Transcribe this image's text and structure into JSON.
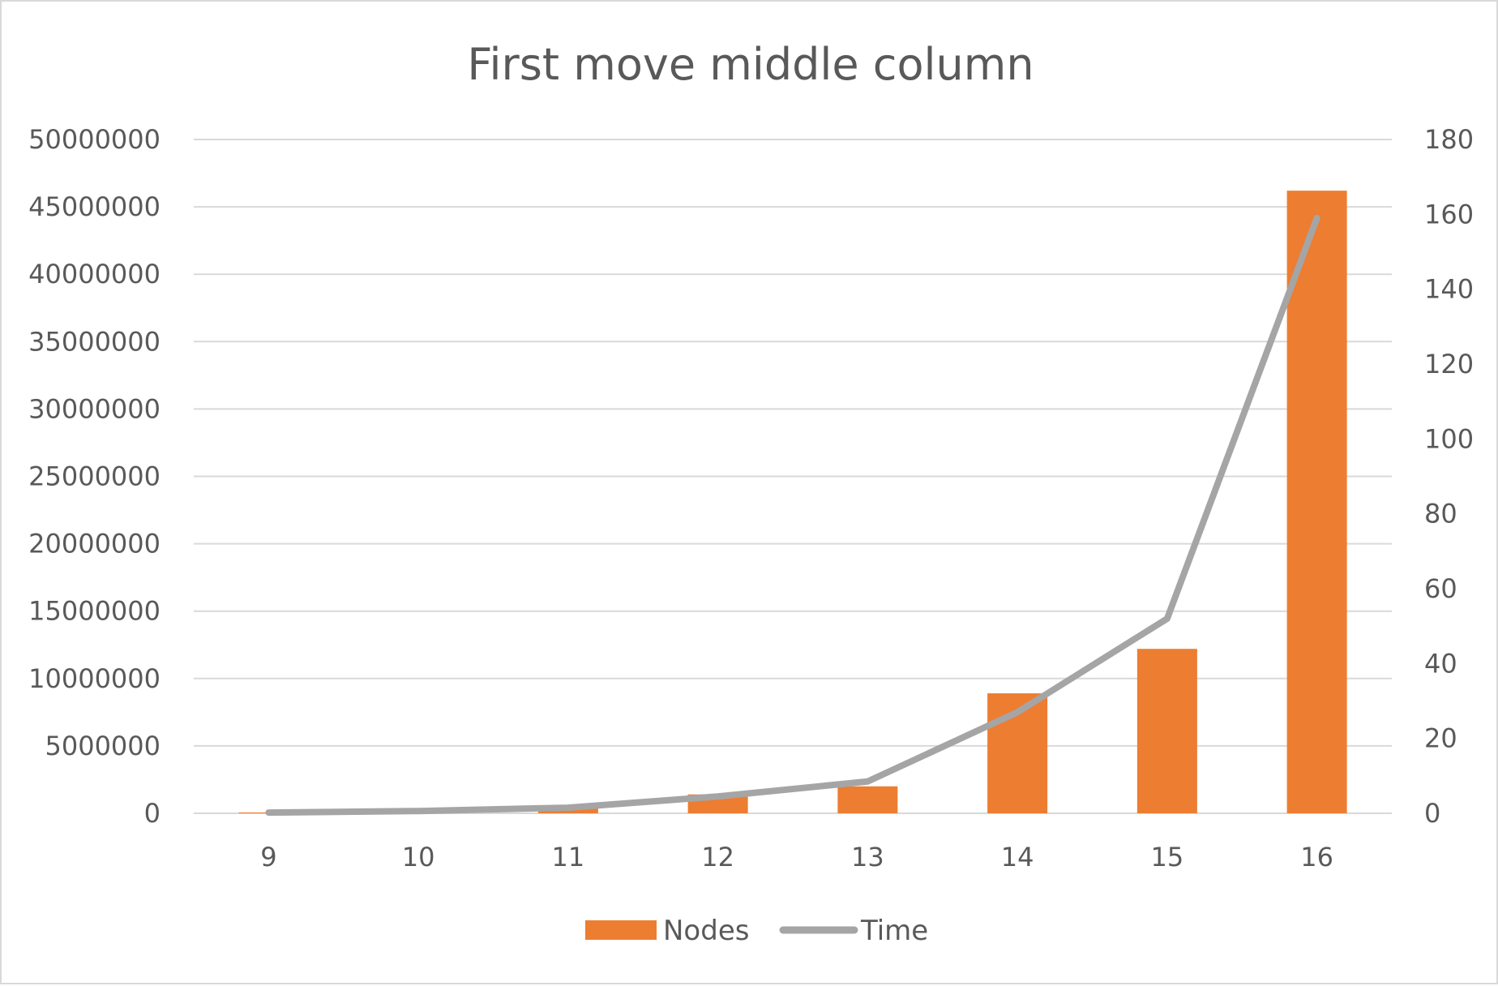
{
  "chart_data": {
    "type": "bar",
    "title": "First move middle column",
    "categories": [
      "9",
      "10",
      "11",
      "12",
      "13",
      "14",
      "15",
      "16"
    ],
    "series": [
      {
        "name": "Nodes",
        "type": "bar",
        "axis": "left",
        "color": "#ED7D31",
        "values": [
          60000,
          150000,
          450000,
          1400000,
          2000000,
          8900000,
          12200000,
          46200000
        ]
      },
      {
        "name": "Time",
        "type": "line",
        "axis": "right",
        "color": "#A5A5A5",
        "values": [
          0.2,
          0.6,
          1.5,
          4.5,
          8.5,
          27,
          52,
          159
        ]
      }
    ],
    "y_left": {
      "min": 0,
      "max": 50000000,
      "ticks": [
        "0",
        "5000000",
        "10000000",
        "15000000",
        "20000000",
        "25000000",
        "30000000",
        "35000000",
        "40000000",
        "45000000",
        "50000000"
      ]
    },
    "y_right": {
      "min": 0,
      "max": 180,
      "ticks": [
        "0",
        "20",
        "40",
        "60",
        "80",
        "100",
        "120",
        "140",
        "160",
        "180"
      ]
    },
    "grid": true,
    "legend_position": "bottom",
    "gridline_color": "#d9d9d9",
    "text_color": "#595959"
  }
}
